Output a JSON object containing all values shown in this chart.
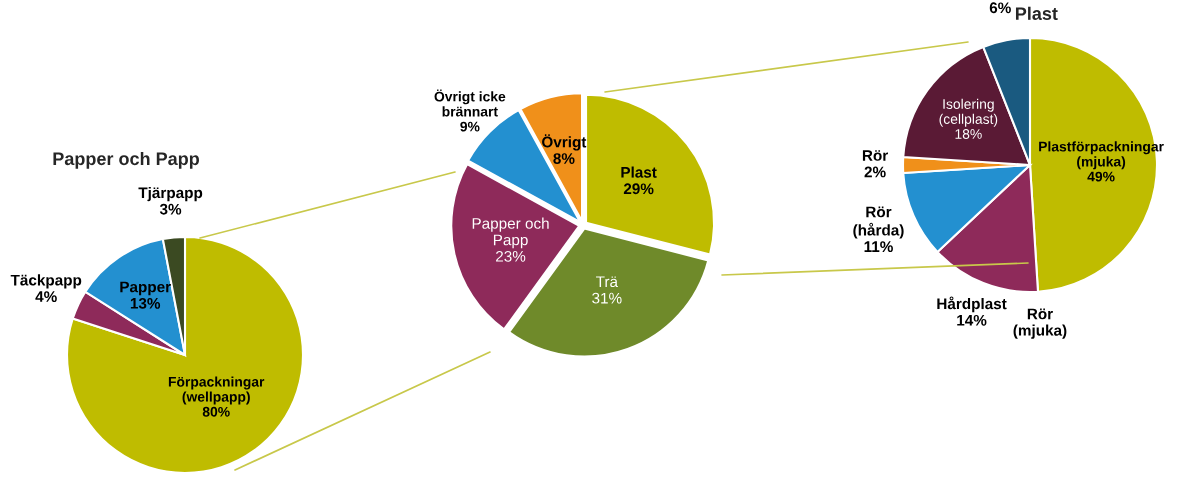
{
  "chart_data": [
    {
      "type": "pie",
      "title": "Papper och Papp",
      "categories": [
        "Förpackningar\n(wellpapp)",
        "Täckpapp",
        "Papper",
        "Tjärpapp"
      ],
      "values": [
        80,
        4,
        13,
        3
      ],
      "colors": [
        "#bfbc00",
        "#8e2a5a",
        "#2390d0",
        "#3b4a22"
      ],
      "value_labels": [
        "80%",
        "4%",
        "13%",
        "3%"
      ]
    },
    {
      "type": "pie",
      "categories": [
        "Plast",
        "Trä",
        "Papper och\nPapp",
        "Övrigt icke\nbrännart",
        "Övrigt"
      ],
      "values": [
        29,
        31,
        23,
        9,
        8
      ],
      "colors": [
        "#bfbc00",
        "#6f8a2a",
        "#8e2a5a",
        "#2390d0",
        "#f0901a"
      ],
      "value_labels": [
        "29%",
        "31%",
        "23%",
        "9%",
        "8%"
      ]
    },
    {
      "type": "pie",
      "title": "Plast",
      "categories": [
        "Plastförpackningar\n(mjuka)",
        "Rör\n(mjuka)",
        "Hårdplast",
        "Rör\n(hårda)",
        "Rör",
        "Isolering\n(cellplast)",
        null
      ],
      "values": [
        49,
        0,
        14,
        11,
        2,
        18,
        6
      ],
      "colors": [
        "#bfbc00",
        "#a0a0a0",
        "#8e2a5a",
        "#2390d0",
        "#f0901a",
        "#5a1a35",
        "#1a5a80"
      ],
      "value_labels": [
        "49%",
        null,
        "14%",
        "11%",
        "2%",
        "18%",
        "6%"
      ]
    }
  ]
}
